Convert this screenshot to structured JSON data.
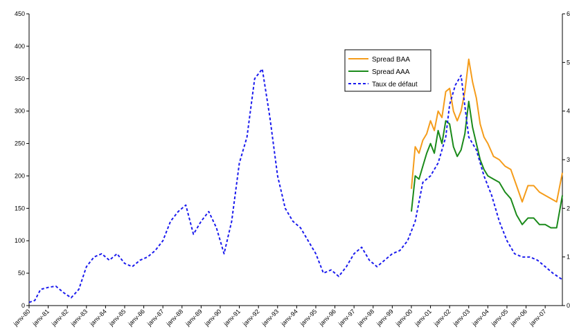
{
  "chart_data": {
    "type": "line",
    "title": "",
    "xlabel": "",
    "ylabel": "",
    "ylim": [
      0,
      450
    ],
    "yticks": [
      0,
      50,
      100,
      150,
      200,
      250,
      300,
      350,
      400,
      450
    ],
    "xtick_labels": [
      "janv-80",
      "janv-81",
      "janv-82",
      "janv-83",
      "janv-84",
      "janv-85",
      "janv-86",
      "janv-87",
      "janv-88",
      "janv-89",
      "janv-90",
      "janv-91",
      "janv-92",
      "janv-93",
      "janv-94",
      "janv-95",
      "janv-96",
      "janv-97",
      "janv-98",
      "janv-99",
      "janv-00",
      "janv-01",
      "janv-02",
      "janv-03",
      "janv-04",
      "janv-05",
      "janv-06",
      "janv-07"
    ],
    "xlim": [
      1980.0,
      2007.9
    ],
    "grid": false,
    "legend_position": "upper-right",
    "series": [
      {
        "name": "Spread BAA",
        "color": "#f59c1a",
        "style": "solid",
        "x": [
          2000.0,
          2000.2,
          2000.4,
          2000.6,
          2000.8,
          2001.0,
          2001.2,
          2001.4,
          2001.6,
          2001.8,
          2002.0,
          2002.2,
          2002.4,
          2002.6,
          2002.8,
          2003.0,
          2003.2,
          2003.4,
          2003.6,
          2003.8,
          2004.0,
          2004.3,
          2004.6,
          2004.9,
          2005.2,
          2005.5,
          2005.8,
          2006.1,
          2006.4,
          2006.7,
          2007.0,
          2007.3,
          2007.6,
          2007.9
        ],
        "values": [
          180,
          245,
          235,
          255,
          265,
          285,
          270,
          300,
          290,
          330,
          335,
          300,
          285,
          300,
          330,
          380,
          345,
          320,
          280,
          260,
          250,
          230,
          225,
          215,
          210,
          185,
          160,
          185,
          185,
          175,
          170,
          165,
          160,
          205
        ]
      },
      {
        "name": "Spread AAA",
        "color": "#1a8a1a",
        "style": "solid",
        "x": [
          2000.0,
          2000.2,
          2000.4,
          2000.6,
          2000.8,
          2001.0,
          2001.2,
          2001.4,
          2001.6,
          2001.8,
          2002.0,
          2002.2,
          2002.4,
          2002.6,
          2002.8,
          2003.0,
          2003.2,
          2003.4,
          2003.6,
          2003.8,
          2004.0,
          2004.3,
          2004.6,
          2004.9,
          2005.2,
          2005.5,
          2005.8,
          2006.1,
          2006.4,
          2006.7,
          2007.0,
          2007.3,
          2007.6,
          2007.9
        ],
        "values": [
          145,
          200,
          195,
          215,
          235,
          250,
          235,
          270,
          250,
          285,
          280,
          245,
          230,
          240,
          265,
          315,
          275,
          250,
          225,
          210,
          200,
          195,
          190,
          175,
          165,
          140,
          125,
          135,
          135,
          125,
          125,
          120,
          120,
          170
        ]
      },
      {
        "name": "Taux de défaut",
        "color": "#1a1aee",
        "style": "dashed",
        "x": [
          1980.0,
          1980.3,
          1980.6,
          1981.0,
          1981.4,
          1981.8,
          1982.2,
          1982.6,
          1983.0,
          1983.4,
          1983.8,
          1984.2,
          1984.6,
          1985.0,
          1985.4,
          1985.8,
          1986.2,
          1986.6,
          1987.0,
          1987.4,
          1987.8,
          1988.2,
          1988.6,
          1989.0,
          1989.4,
          1989.8,
          1990.2,
          1990.6,
          1991.0,
          1991.4,
          1991.8,
          1992.2,
          1992.6,
          1993.0,
          1993.4,
          1993.8,
          1994.2,
          1994.6,
          1995.0,
          1995.4,
          1995.8,
          1996.2,
          1996.6,
          1997.0,
          1997.4,
          1997.8,
          1998.2,
          1998.6,
          1999.0,
          1999.4,
          1999.8,
          2000.2,
          2000.6,
          2001.0,
          2001.4,
          2001.8,
          2002.0,
          2002.3,
          2002.6,
          2003.0,
          2003.4,
          2003.8,
          2004.2,
          2004.6,
          2005.0,
          2005.4,
          2005.8,
          2006.2,
          2006.6,
          2007.0,
          2007.4,
          2007.9
        ],
        "values": [
          5,
          8,
          25,
          28,
          30,
          20,
          12,
          25,
          60,
          75,
          80,
          70,
          80,
          65,
          60,
          70,
          75,
          85,
          100,
          130,
          145,
          155,
          110,
          130,
          145,
          120,
          80,
          130,
          220,
          260,
          350,
          365,
          290,
          200,
          150,
          130,
          120,
          100,
          80,
          50,
          55,
          45,
          60,
          80,
          90,
          70,
          60,
          70,
          80,
          85,
          100,
          130,
          190,
          200,
          220,
          260,
          310,
          340,
          355,
          260,
          240,
          200,
          170,
          130,
          100,
          80,
          75,
          75,
          70,
          60,
          50,
          40
        ]
      }
    ]
  },
  "right_axis": {
    "tick_values": [
      0,
      1,
      2,
      3,
      4,
      5,
      6
    ]
  }
}
